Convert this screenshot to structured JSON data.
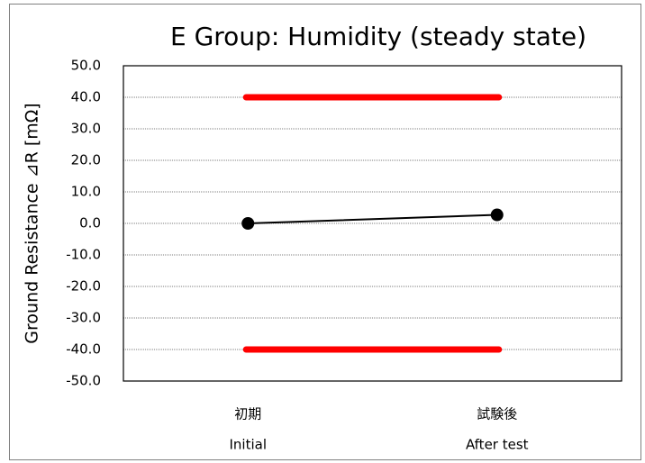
{
  "chart_data": {
    "type": "line",
    "title": "E Group: Humidity (steady state)",
    "y_label": "Ground Resistance ⊿R [mΩ]",
    "categories": [
      [
        "初期",
        "Initial"
      ],
      [
        "試験後",
        "After test"
      ]
    ],
    "series": [
      {
        "color": "#ff0000",
        "values": [
          40,
          40
        ]
      },
      {
        "color": "#ff0000",
        "values": [
          -40,
          -40
        ]
      },
      {
        "color": "#000000",
        "values": [
          0,
          2.7
        ]
      }
    ],
    "ylim": [
      -50,
      50
    ],
    "yticks": [
      {
        "value": -50,
        "label": "-50.0"
      },
      {
        "value": -40,
        "label": "-40.0"
      },
      {
        "value": -30,
        "label": "-30.0"
      },
      {
        "value": -20,
        "label": "-20.0"
      },
      {
        "value": -10,
        "label": "-10.0"
      },
      {
        "value": 0,
        "label": "0.0"
      },
      {
        "value": 10,
        "label": "10.0"
      },
      {
        "value": 20,
        "label": "20.0"
      },
      {
        "value": 30,
        "label": "30.0"
      },
      {
        "value": 40,
        "label": "40.0"
      },
      {
        "value": 50,
        "label": "50.0"
      }
    ],
    "grid": true
  }
}
